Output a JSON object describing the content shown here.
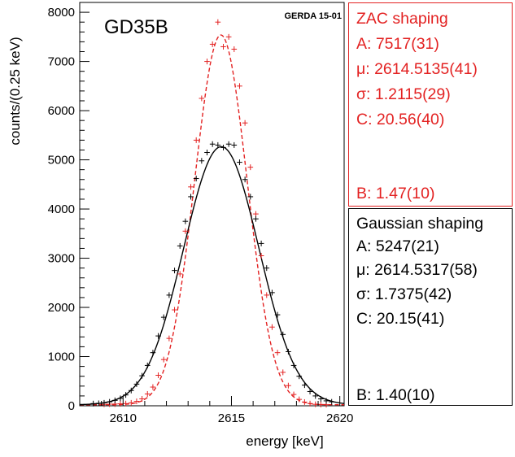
{
  "chart_data": {
    "type": "line",
    "label": "GD35B",
    "watermark": "GERDA 15-01",
    "xlabel": "energy [keV]",
    "ylabel": "counts/(0.25 keV)",
    "xlim": [
      2608.0,
      2620.2
    ],
    "ylim": [
      0,
      8200
    ],
    "x_ticks": [
      2610,
      2615,
      2620
    ],
    "y_ticks": [
      0,
      1000,
      2000,
      3000,
      4000,
      5000,
      6000,
      7000,
      8000
    ],
    "x_tick_labels": [
      "2610",
      "2615",
      "2620"
    ],
    "y_tick_labels": [
      "0",
      "1000",
      "2000",
      "3000",
      "4000",
      "5000",
      "6000",
      "7000",
      "8000"
    ],
    "grid": false,
    "bin_width": 0.25,
    "series": [
      {
        "name": "ZAC shaping",
        "color": "#e32222",
        "line_style": "dashed",
        "fit": {
          "A": 7517,
          "mu": 2614.5135,
          "sigma": 1.2115,
          "C": 20.56,
          "B": 1.47
        },
        "x": [
          2609.125,
          2609.375,
          2609.625,
          2609.875,
          2610.125,
          2610.375,
          2610.625,
          2610.875,
          2611.125,
          2611.375,
          2611.625,
          2611.875,
          2612.125,
          2612.375,
          2612.625,
          2612.875,
          2613.125,
          2613.375,
          2613.625,
          2613.875,
          2614.125,
          2614.375,
          2614.625,
          2614.875,
          2615.125,
          2615.375,
          2615.625,
          2615.875,
          2616.125,
          2616.375,
          2616.625,
          2616.875,
          2617.125,
          2617.375,
          2617.625,
          2617.875,
          2618.125,
          2618.375,
          2618.625,
          2618.875,
          2619.125,
          2619.375
        ],
        "y": [
          30,
          33,
          35,
          40,
          45,
          60,
          90,
          140,
          240,
          380,
          620,
          940,
          1370,
          1950,
          2680,
          3550,
          4450,
          5400,
          6250,
          7000,
          7350,
          7800,
          7300,
          7500,
          7250,
          6500,
          5750,
          4850,
          3900,
          3050,
          2250,
          1600,
          1080,
          680,
          410,
          230,
          130,
          75,
          45,
          30,
          25,
          22
        ]
      },
      {
        "name": "Gaussian shaping",
        "color": "#000000",
        "line_style": "solid",
        "fit": {
          "A": 5247,
          "mu": 2614.5317,
          "sigma": 1.7375,
          "C": 20.15,
          "B": 1.4
        },
        "x": [
          2608.625,
          2608.875,
          2609.125,
          2609.375,
          2609.625,
          2609.875,
          2610.125,
          2610.375,
          2610.625,
          2610.875,
          2611.125,
          2611.375,
          2611.625,
          2611.875,
          2612.125,
          2612.375,
          2612.625,
          2612.875,
          2613.125,
          2613.375,
          2613.625,
          2613.875,
          2614.125,
          2614.375,
          2614.625,
          2614.875,
          2615.125,
          2615.375,
          2615.625,
          2615.875,
          2616.125,
          2616.375,
          2616.625,
          2616.875,
          2617.125,
          2617.375,
          2617.625,
          2617.875,
          2618.125,
          2618.375,
          2618.625,
          2618.875,
          2619.125,
          2619.375,
          2619.625
        ],
        "y": [
          45,
          50,
          60,
          80,
          110,
          150,
          220,
          310,
          440,
          610,
          820,
          1080,
          1420,
          1800,
          2250,
          2750,
          3250,
          3750,
          4250,
          4620,
          4980,
          5150,
          5320,
          5300,
          5250,
          5320,
          5300,
          4950,
          4600,
          4250,
          3800,
          3300,
          2800,
          2300,
          1850,
          1450,
          1100,
          820,
          600,
          420,
          290,
          200,
          140,
          100,
          80
        ]
      }
    ],
    "fit_boxes": [
      {
        "title": "ZAC shaping",
        "lines": [
          "A: 7517(31)",
          "μ: 2614.5135(41)",
          "σ: 1.2115(29)",
          "C: 20.56(40)"
        ],
        "last_line": "B: 1.47(10)",
        "color": "#e32222"
      },
      {
        "title": "Gaussian shaping",
        "lines": [
          "A: 5247(21)",
          "μ: 2614.5317(58)",
          "σ: 1.7375(42)",
          "C: 20.15(41)"
        ],
        "last_line": "B: 1.40(10)",
        "color": "#000000"
      }
    ]
  }
}
